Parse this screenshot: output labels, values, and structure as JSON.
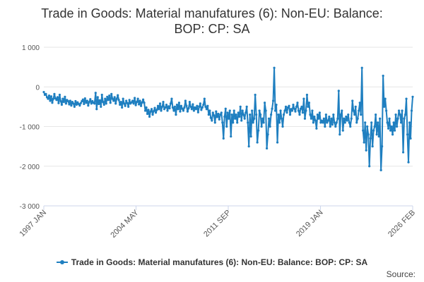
{
  "chart_data": {
    "type": "line",
    "title_lines": [
      "Trade in Goods: Material manufatures (6): Non-EU: Balance:",
      "BOP: CP: SA"
    ],
    "xlabel": "",
    "ylabel": "",
    "ylim": [
      -3000,
      1000
    ],
    "y_ticks": [
      -3000,
      -2000,
      -1000,
      0,
      1000
    ],
    "y_tick_labels": [
      "-3 000",
      "-2 000",
      "-1 000",
      "0",
      "1 000"
    ],
    "x_tick_labels": [
      "1997 JAN",
      "2004 MAY",
      "2011 SEP",
      "2019 JAN",
      "2026 FEB"
    ],
    "x_start": "1997 JAN",
    "x_end": "2026 FEB",
    "grid": true,
    "legend_position": "bottom",
    "series": [
      {
        "name": "Trade in Goods: Material manufatures (6): Non-EU: Balance: BOP: CP: SA",
        "color": "#1f7fc0",
        "annual_values": [
          [
            -130,
            -200,
            -180,
            -260,
            -300,
            -220,
            -350,
            -240,
            -400,
            -300,
            -180,
            -290
          ],
          [
            -330,
            -260,
            -410,
            -200,
            -360,
            -450,
            -300,
            -380,
            -250,
            -420,
            -330,
            -360
          ],
          [
            -440,
            -350,
            -470,
            -380,
            -420,
            -500,
            -360,
            -450,
            -390,
            -430,
            -470,
            -410
          ],
          [
            -360,
            -320,
            -430,
            -290,
            -400,
            -350,
            -470,
            -380,
            -310,
            -420,
            -360,
            -400
          ],
          [
            -420,
            -150,
            -560,
            -260,
            -430,
            -340,
            -500,
            -200,
            -380,
            -450,
            -300,
            -420
          ],
          [
            -250,
            -330,
            -220,
            -400,
            -180,
            -300,
            -350,
            -260,
            -420,
            -300,
            -210,
            -330
          ],
          [
            -450,
            -380,
            -520,
            -300,
            -420,
            -480,
            -350,
            -410,
            -500,
            -330,
            -420,
            -390
          ],
          [
            -350,
            -420,
            -280,
            -460,
            -380,
            -300,
            -440,
            -350,
            -480,
            -390,
            -320,
            -400
          ],
          [
            -600,
            -520,
            -680,
            -580,
            -750,
            -620,
            -560,
            -700,
            -610,
            -530,
            -650,
            -580
          ],
          [
            -480,
            -560,
            -420,
            -600,
            -500,
            -380,
            -560,
            -520,
            -450,
            -600,
            -490,
            -540
          ],
          [
            -420,
            -300,
            -520,
            -600,
            -500,
            -700,
            -450,
            -560,
            -400,
            -620,
            -480,
            -550
          ],
          [
            -600,
            -520,
            -350,
            -480,
            -620,
            -540,
            -380,
            -500,
            -560,
            -440,
            -600,
            -520
          ],
          [
            -560,
            -480,
            -640,
            -500,
            -420,
            -580,
            -520,
            -450,
            -300,
            -500,
            -560,
            -480
          ],
          [
            -700,
            -600,
            -780,
            -850,
            -650,
            -720,
            -900,
            -620,
            -760,
            -680,
            -820,
            -700
          ],
          [
            -650,
            -900,
            -1300,
            -750,
            -550,
            -1000,
            -650,
            -800,
            -600,
            -1250,
            -700,
            -900
          ],
          [
            -600,
            -800,
            -700,
            -900,
            -650,
            -750,
            -500,
            -850,
            -600,
            -700,
            -800,
            -650
          ],
          [
            -500,
            -900,
            -1500,
            -700,
            -1250,
            -600,
            -900,
            -800,
            -200,
            -700,
            -1400,
            -1100
          ],
          [
            -600,
            -700,
            -1000,
            -800,
            -900,
            -400,
            -600,
            -1550,
            -1200,
            -800,
            -1000,
            -700
          ],
          [
            -550,
            -350,
            480,
            -600,
            -450,
            -1400,
            -700,
            -900,
            -600,
            -800,
            -1000,
            -700
          ],
          [
            -600,
            -500,
            -650,
            -520,
            -480,
            -700,
            -560,
            -600,
            -450,
            -550,
            -620,
            -500
          ],
          [
            -400,
            -600,
            -700,
            -550,
            -500,
            -650,
            -300,
            -800,
            -600,
            -200,
            -500,
            -400
          ],
          [
            -700,
            -800,
            -600,
            -900,
            -750,
            -850,
            -1050,
            -700,
            -800,
            -650,
            -900,
            -850
          ],
          [
            -900,
            -800,
            -1000,
            -700,
            -900,
            -850,
            -750,
            -1000,
            -800,
            -950,
            -700,
            -900
          ],
          [
            -1000,
            -900,
            -800,
            -100,
            -1200,
            -700,
            -600,
            -1100,
            -800,
            -900,
            -750,
            -850
          ],
          [
            -700,
            -900,
            -1000,
            -800,
            -350,
            -600,
            -700,
            -500,
            -900,
            -800,
            -600,
            -400
          ],
          [
            -700,
            480,
            -1100,
            -1400,
            -900,
            -1600,
            -1000,
            -1200,
            -2000,
            -1300,
            -900,
            -1500
          ],
          [
            -1100,
            -1000,
            -700,
            -1200,
            -900,
            -1250,
            -800,
            -2100,
            -1500,
            280,
            -500,
            -300
          ],
          [
            -600,
            -900,
            -1050,
            -800,
            -1100,
            -1000,
            -1200,
            -900,
            -1100,
            -700,
            -1000,
            -800
          ],
          [
            -600,
            -700,
            -900,
            -600,
            -1650,
            -800,
            -700,
            -300,
            -1200,
            -1900,
            -900,
            -1300
          ],
          [
            -600,
            -250
          ]
        ]
      }
    ]
  },
  "source": {
    "label": "Source:"
  }
}
